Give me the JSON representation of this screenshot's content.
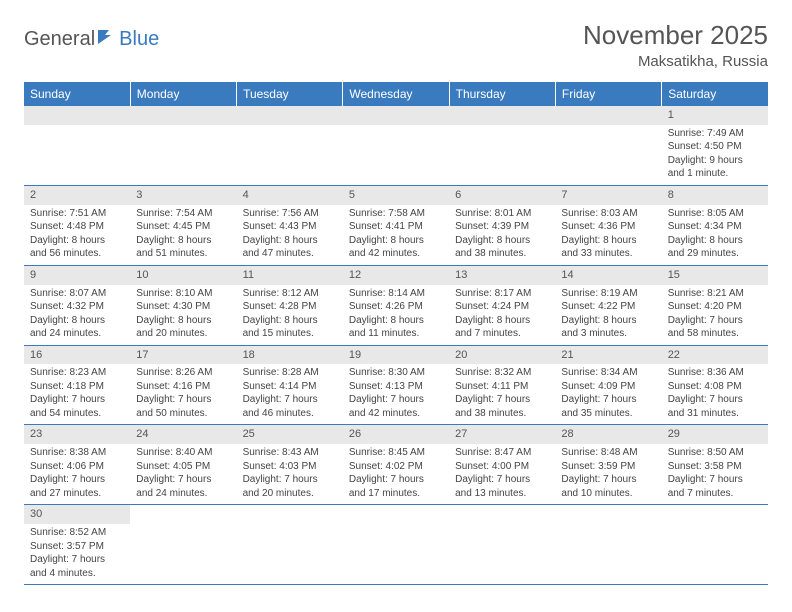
{
  "logo": {
    "text1": "General",
    "text2": "Blue"
  },
  "title": "November 2025",
  "location": "Maksatikha, Russia",
  "colors": {
    "header_bg": "#3a7bbf",
    "header_text": "#ffffff",
    "daynum_bg": "#e8e8e8",
    "cell_border": "#3a7bbf",
    "body_text": "#444444",
    "title_text": "#555555"
  },
  "weekdays": [
    "Sunday",
    "Monday",
    "Tuesday",
    "Wednesday",
    "Thursday",
    "Friday",
    "Saturday"
  ],
  "weeks": [
    [
      null,
      null,
      null,
      null,
      null,
      null,
      {
        "day": "1",
        "sunrise": "Sunrise: 7:49 AM",
        "sunset": "Sunset: 4:50 PM",
        "daylight": "Daylight: 9 hours and 1 minute."
      }
    ],
    [
      {
        "day": "2",
        "sunrise": "Sunrise: 7:51 AM",
        "sunset": "Sunset: 4:48 PM",
        "daylight": "Daylight: 8 hours and 56 minutes."
      },
      {
        "day": "3",
        "sunrise": "Sunrise: 7:54 AM",
        "sunset": "Sunset: 4:45 PM",
        "daylight": "Daylight: 8 hours and 51 minutes."
      },
      {
        "day": "4",
        "sunrise": "Sunrise: 7:56 AM",
        "sunset": "Sunset: 4:43 PM",
        "daylight": "Daylight: 8 hours and 47 minutes."
      },
      {
        "day": "5",
        "sunrise": "Sunrise: 7:58 AM",
        "sunset": "Sunset: 4:41 PM",
        "daylight": "Daylight: 8 hours and 42 minutes."
      },
      {
        "day": "6",
        "sunrise": "Sunrise: 8:01 AM",
        "sunset": "Sunset: 4:39 PM",
        "daylight": "Daylight: 8 hours and 38 minutes."
      },
      {
        "day": "7",
        "sunrise": "Sunrise: 8:03 AM",
        "sunset": "Sunset: 4:36 PM",
        "daylight": "Daylight: 8 hours and 33 minutes."
      },
      {
        "day": "8",
        "sunrise": "Sunrise: 8:05 AM",
        "sunset": "Sunset: 4:34 PM",
        "daylight": "Daylight: 8 hours and 29 minutes."
      }
    ],
    [
      {
        "day": "9",
        "sunrise": "Sunrise: 8:07 AM",
        "sunset": "Sunset: 4:32 PM",
        "daylight": "Daylight: 8 hours and 24 minutes."
      },
      {
        "day": "10",
        "sunrise": "Sunrise: 8:10 AM",
        "sunset": "Sunset: 4:30 PM",
        "daylight": "Daylight: 8 hours and 20 minutes."
      },
      {
        "day": "11",
        "sunrise": "Sunrise: 8:12 AM",
        "sunset": "Sunset: 4:28 PM",
        "daylight": "Daylight: 8 hours and 15 minutes."
      },
      {
        "day": "12",
        "sunrise": "Sunrise: 8:14 AM",
        "sunset": "Sunset: 4:26 PM",
        "daylight": "Daylight: 8 hours and 11 minutes."
      },
      {
        "day": "13",
        "sunrise": "Sunrise: 8:17 AM",
        "sunset": "Sunset: 4:24 PM",
        "daylight": "Daylight: 8 hours and 7 minutes."
      },
      {
        "day": "14",
        "sunrise": "Sunrise: 8:19 AM",
        "sunset": "Sunset: 4:22 PM",
        "daylight": "Daylight: 8 hours and 3 minutes."
      },
      {
        "day": "15",
        "sunrise": "Sunrise: 8:21 AM",
        "sunset": "Sunset: 4:20 PM",
        "daylight": "Daylight: 7 hours and 58 minutes."
      }
    ],
    [
      {
        "day": "16",
        "sunrise": "Sunrise: 8:23 AM",
        "sunset": "Sunset: 4:18 PM",
        "daylight": "Daylight: 7 hours and 54 minutes."
      },
      {
        "day": "17",
        "sunrise": "Sunrise: 8:26 AM",
        "sunset": "Sunset: 4:16 PM",
        "daylight": "Daylight: 7 hours and 50 minutes."
      },
      {
        "day": "18",
        "sunrise": "Sunrise: 8:28 AM",
        "sunset": "Sunset: 4:14 PM",
        "daylight": "Daylight: 7 hours and 46 minutes."
      },
      {
        "day": "19",
        "sunrise": "Sunrise: 8:30 AM",
        "sunset": "Sunset: 4:13 PM",
        "daylight": "Daylight: 7 hours and 42 minutes."
      },
      {
        "day": "20",
        "sunrise": "Sunrise: 8:32 AM",
        "sunset": "Sunset: 4:11 PM",
        "daylight": "Daylight: 7 hours and 38 minutes."
      },
      {
        "day": "21",
        "sunrise": "Sunrise: 8:34 AM",
        "sunset": "Sunset: 4:09 PM",
        "daylight": "Daylight: 7 hours and 35 minutes."
      },
      {
        "day": "22",
        "sunrise": "Sunrise: 8:36 AM",
        "sunset": "Sunset: 4:08 PM",
        "daylight": "Daylight: 7 hours and 31 minutes."
      }
    ],
    [
      {
        "day": "23",
        "sunrise": "Sunrise: 8:38 AM",
        "sunset": "Sunset: 4:06 PM",
        "daylight": "Daylight: 7 hours and 27 minutes."
      },
      {
        "day": "24",
        "sunrise": "Sunrise: 8:40 AM",
        "sunset": "Sunset: 4:05 PM",
        "daylight": "Daylight: 7 hours and 24 minutes."
      },
      {
        "day": "25",
        "sunrise": "Sunrise: 8:43 AM",
        "sunset": "Sunset: 4:03 PM",
        "daylight": "Daylight: 7 hours and 20 minutes."
      },
      {
        "day": "26",
        "sunrise": "Sunrise: 8:45 AM",
        "sunset": "Sunset: 4:02 PM",
        "daylight": "Daylight: 7 hours and 17 minutes."
      },
      {
        "day": "27",
        "sunrise": "Sunrise: 8:47 AM",
        "sunset": "Sunset: 4:00 PM",
        "daylight": "Daylight: 7 hours and 13 minutes."
      },
      {
        "day": "28",
        "sunrise": "Sunrise: 8:48 AM",
        "sunset": "Sunset: 3:59 PM",
        "daylight": "Daylight: 7 hours and 10 minutes."
      },
      {
        "day": "29",
        "sunrise": "Sunrise: 8:50 AM",
        "sunset": "Sunset: 3:58 PM",
        "daylight": "Daylight: 7 hours and 7 minutes."
      }
    ],
    [
      {
        "day": "30",
        "sunrise": "Sunrise: 8:52 AM",
        "sunset": "Sunset: 3:57 PM",
        "daylight": "Daylight: 7 hours and 4 minutes."
      },
      null,
      null,
      null,
      null,
      null,
      null
    ]
  ]
}
